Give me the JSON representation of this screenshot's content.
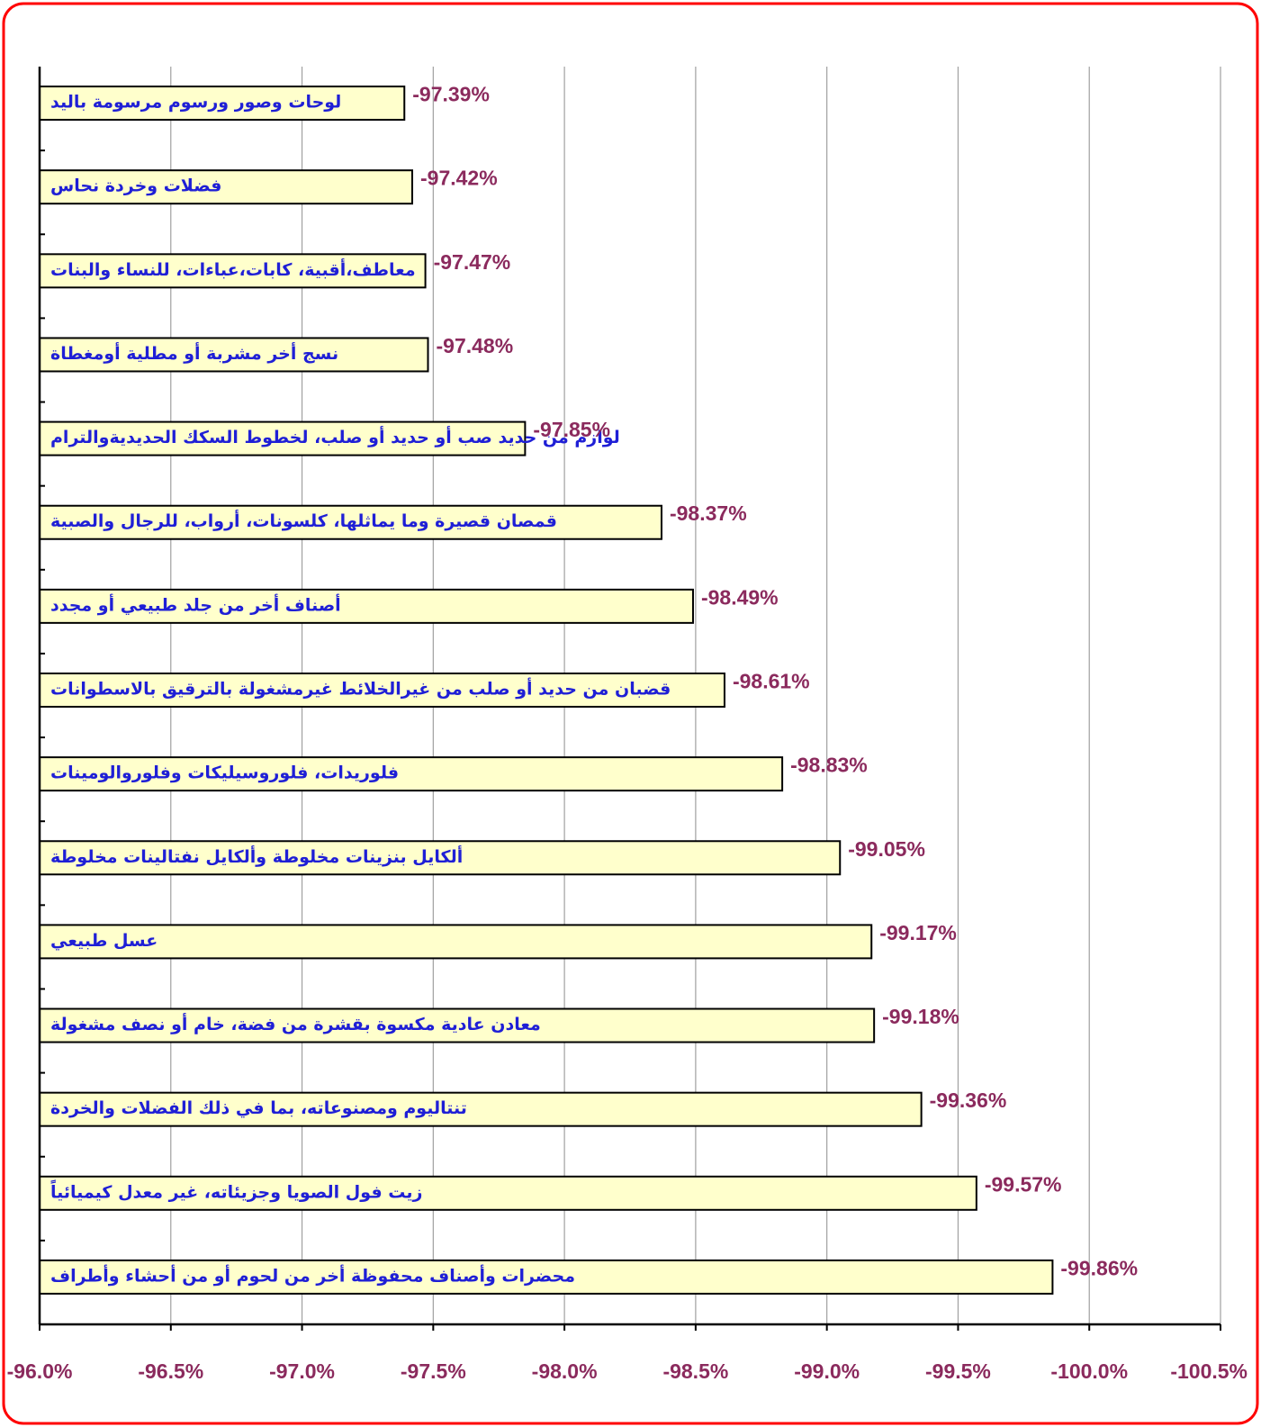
{
  "colors": {
    "border": "#ff0000",
    "bar_fill": "#ffffcc",
    "bar_stroke": "#000000",
    "grid": "#a0a0a0",
    "category_text": "#1f1fd6",
    "value_text": "#8b2a5d"
  },
  "chart_data": {
    "type": "bar",
    "orientation": "horizontal",
    "title": "",
    "xlabel": "",
    "ylabel": "",
    "xlim": [
      -96.0,
      -100.5
    ],
    "x_ticks": [
      -96.0,
      -96.5,
      -97.0,
      -97.5,
      -98.0,
      -98.5,
      -99.0,
      -99.5,
      -100.0,
      -100.5
    ],
    "x_tick_labels": [
      "-96.0%",
      "-96.5%",
      "-97.0%",
      "-97.5%",
      "-98.0%",
      "-98.5%",
      "-99.0%",
      "-99.5%",
      "-100.0%",
      "-100.5%"
    ],
    "grid": "vertical",
    "legend": "none",
    "categories": [
      "لوحات وصور ورسوم مرسومة باليد",
      "فضلات وخردة نحاس",
      "معاطف،أقبية، كابات،عباءات، للنساء والبنات",
      "نسج أخر مشربة أو مطلية أومغطاة",
      "لوازم من حديد صب أو حديد أو صلب، لخطوط السكك الحديديةوالترام",
      "قمصان قصيرة وما يماثلها، كلسونات، أرواب، للرجال والصبية",
      "أصناف أخر من جلد طبيعي أو مجدد",
      "قضبان من حديد أو صلب من غيرالخلائط غيرمشغولة بالترقيق بالاسطوانات",
      "فلوريدات، فلوروسيليكات وفلوروالومينات",
      "ألكايل بنزينات مخلوطة وألكايل نفتالينات مخلوطة",
      "عسل طبيعي",
      "معادن عادية مكسوة بقشرة من فضة، خام أو نصف مشغولة",
      "تنتاليوم ومصنوعاته، بما في ذلك الفضلات والخردة",
      "زيت فول الصويا وجزيئاته، غير معدل كيميائياً",
      "محضرات وأصناف محفوظة أخر من لحوم أو من أحشاء وأطراف"
    ],
    "values": [
      -97.39,
      -97.42,
      -97.47,
      -97.48,
      -97.85,
      -98.37,
      -98.49,
      -98.61,
      -98.83,
      -99.05,
      -99.17,
      -99.18,
      -99.36,
      -99.57,
      -99.86
    ],
    "value_labels": [
      "-97.39%",
      "-97.42%",
      "-97.47%",
      "-97.48%",
      "-97.85%",
      "-98.37%",
      "-98.49%",
      "-98.61%",
      "-98.83%",
      "-99.05%",
      "-99.17%",
      "-99.18%",
      "-99.36%",
      "-99.57%",
      "-99.86%"
    ]
  }
}
